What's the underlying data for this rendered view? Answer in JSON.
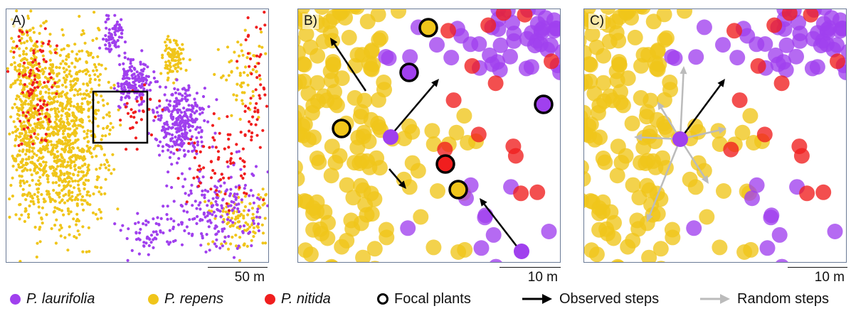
{
  "colors": {
    "laurifolia": "#a040ee",
    "repens": "#f0c51a",
    "nitida": "#f01e1e",
    "observed": "#000000",
    "random": "#bbbbbb"
  },
  "panels": [
    {
      "label": "A)",
      "scale": "50 m"
    },
    {
      "label": "B)",
      "scale": "10 m"
    },
    {
      "label": "C)",
      "scale": "10 m"
    }
  ],
  "legend": {
    "laurifolia": "P. laurifolia",
    "repens": "P. repens",
    "nitida": "P. nitida",
    "focal": "Focal plants",
    "observed": "Observed steps",
    "random": "Random steps"
  }
}
